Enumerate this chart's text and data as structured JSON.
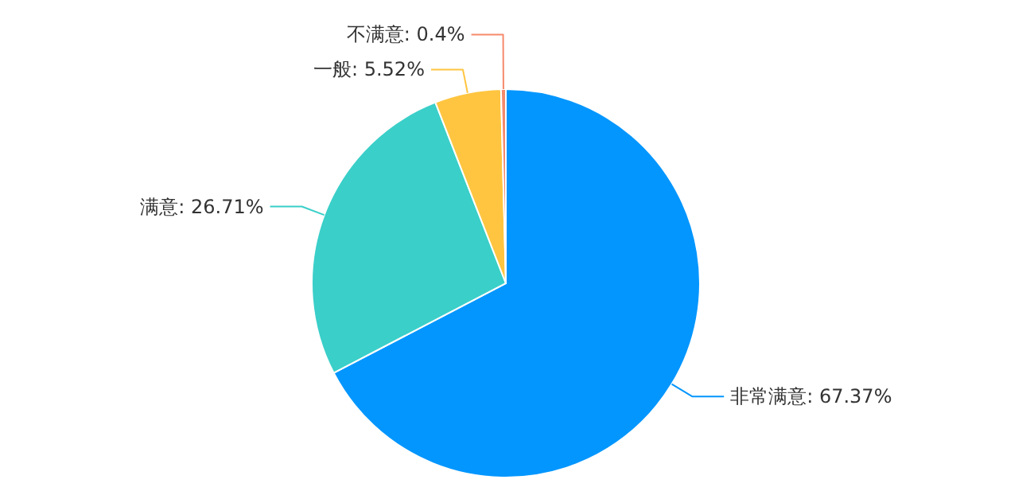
{
  "chart_data": {
    "type": "pie",
    "categories": [
      "非常满意",
      "满意",
      "一般",
      "不满意"
    ],
    "values": [
      67.37,
      26.71,
      5.52,
      0.4
    ],
    "value_labels": [
      "67.37%",
      "26.71%",
      "5.52%",
      "0.4%"
    ],
    "colors": [
      "#0396ff",
      "#3acfc9",
      "#ffc540",
      "#f5896b"
    ]
  }
}
